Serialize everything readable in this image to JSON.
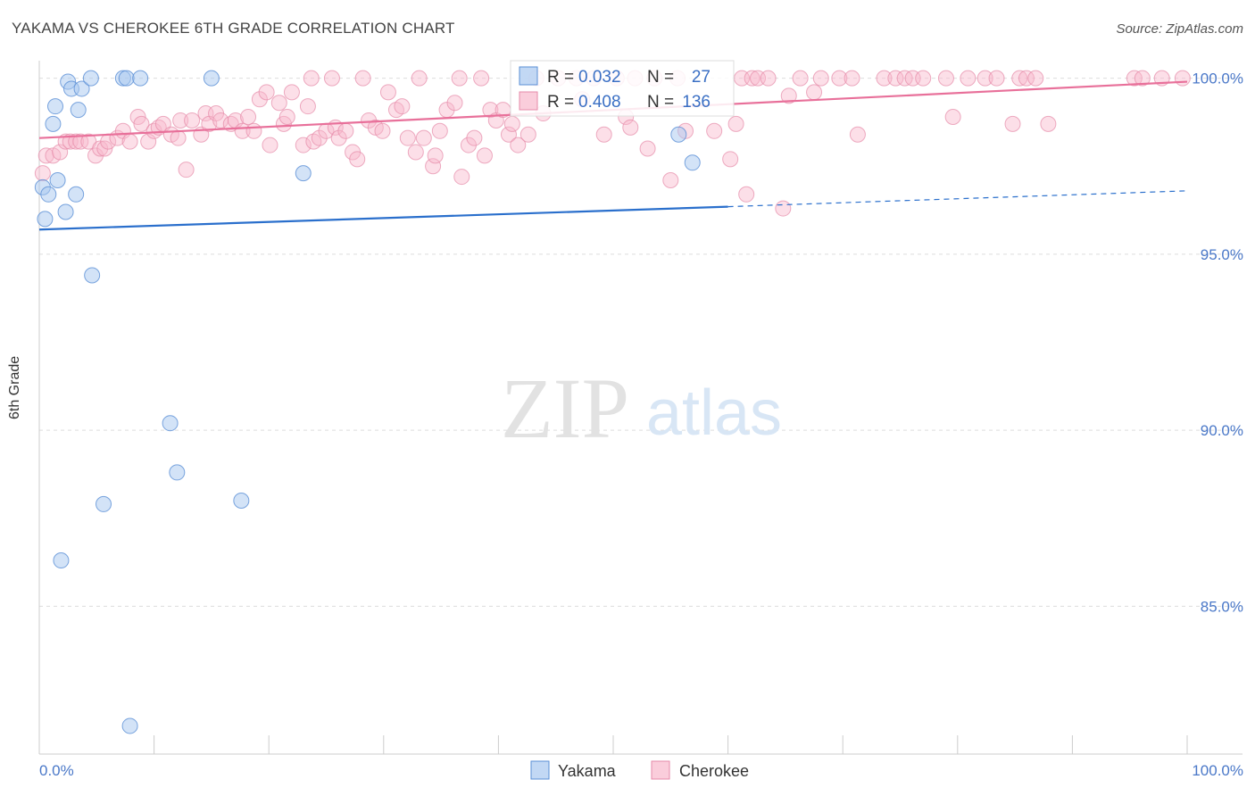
{
  "header": {
    "title": "YAKAMA VS CHEROKEE 6TH GRADE CORRELATION CHART",
    "source": "Source: ZipAtlas.com"
  },
  "watermark": {
    "zip": "ZIP",
    "atlas": "atlas"
  },
  "colors": {
    "yakama_fill": "#a8c8f0",
    "yakama_stroke": "#5a8fd6",
    "yakama_line": "#2a6fcc",
    "cherokee_fill": "#f8b8cc",
    "cherokee_stroke": "#e68aa8",
    "cherokee_line": "#e8709a",
    "tick_text": "#4a78c8",
    "grid": "#dddddd"
  },
  "chart_data": {
    "type": "scatter",
    "title": "YAKAMA VS CHEROKEE 6TH GRADE CORRELATION CHART",
    "xlabel": "",
    "ylabel": "6th Grade",
    "xlim": [
      0,
      100
    ],
    "ylim": [
      80.8,
      100.7
    ],
    "x_tick_labels": [
      {
        "value": 0,
        "label": "0.0%"
      },
      {
        "value": 100,
        "label": "100.0%"
      }
    ],
    "y_tick_labels": [
      {
        "value": 100,
        "label": "100.0%"
      },
      {
        "value": 95,
        "label": "95.0%"
      },
      {
        "value": 90,
        "label": "90.0%"
      },
      {
        "value": 85,
        "label": "85.0%"
      }
    ],
    "legend_position": "top-center",
    "series": [
      {
        "name": "Yakama",
        "R": "0.032",
        "N": "27",
        "trend": {
          "x0": 0,
          "y0": 95.7,
          "x1": 60,
          "y1": 96.35,
          "dash_to_x": 100,
          "dash_to_y": 96.8
        },
        "points": [
          [
            0.3,
            96.9
          ],
          [
            0.5,
            96.0
          ],
          [
            0.8,
            96.7
          ],
          [
            1.2,
            98.7
          ],
          [
            1.4,
            99.2
          ],
          [
            1.6,
            97.1
          ],
          [
            1.9,
            86.3
          ],
          [
            2.3,
            96.2
          ],
          [
            2.5,
            99.9
          ],
          [
            2.8,
            99.7
          ],
          [
            3.2,
            96.7
          ],
          [
            3.4,
            99.1
          ],
          [
            3.7,
            99.7
          ],
          [
            4.5,
            100.0
          ],
          [
            4.6,
            94.4
          ],
          [
            5.6,
            87.9
          ],
          [
            7.3,
            100.0
          ],
          [
            7.6,
            100.0
          ],
          [
            7.9,
            81.6
          ],
          [
            8.8,
            100.0
          ],
          [
            11.4,
            90.2
          ],
          [
            12.0,
            88.8
          ],
          [
            15.0,
            100.0
          ],
          [
            17.6,
            88.0
          ],
          [
            23.0,
            97.3
          ],
          [
            55.7,
            98.4
          ],
          [
            56.9,
            97.6
          ]
        ]
      },
      {
        "name": "Cherokee",
        "R": "0.408",
        "N": "136",
        "trend": {
          "x0": 0,
          "y0": 98.3,
          "x1": 100,
          "y1": 99.9
        },
        "points": [
          [
            0.3,
            97.3
          ],
          [
            0.6,
            97.8
          ],
          [
            1.2,
            97.8
          ],
          [
            1.8,
            97.9
          ],
          [
            2.3,
            98.2
          ],
          [
            2.7,
            98.2
          ],
          [
            3.2,
            98.2
          ],
          [
            3.6,
            98.2
          ],
          [
            4.3,
            98.2
          ],
          [
            4.9,
            97.8
          ],
          [
            5.3,
            98.0
          ],
          [
            5.7,
            98.0
          ],
          [
            6.0,
            98.2
          ],
          [
            6.8,
            98.3
          ],
          [
            7.3,
            98.5
          ],
          [
            7.9,
            98.2
          ],
          [
            8.6,
            98.9
          ],
          [
            8.9,
            98.7
          ],
          [
            9.5,
            98.2
          ],
          [
            10.0,
            98.5
          ],
          [
            10.4,
            98.6
          ],
          [
            10.8,
            98.7
          ],
          [
            11.5,
            98.4
          ],
          [
            12.1,
            98.3
          ],
          [
            12.3,
            98.8
          ],
          [
            12.8,
            97.4
          ],
          [
            13.3,
            98.8
          ],
          [
            14.1,
            98.4
          ],
          [
            14.5,
            99.0
          ],
          [
            14.8,
            98.7
          ],
          [
            15.4,
            99.0
          ],
          [
            15.8,
            98.8
          ],
          [
            16.7,
            98.7
          ],
          [
            17.1,
            98.8
          ],
          [
            17.7,
            98.5
          ],
          [
            18.2,
            98.9
          ],
          [
            18.7,
            98.5
          ],
          [
            19.2,
            99.4
          ],
          [
            19.8,
            99.6
          ],
          [
            20.1,
            98.1
          ],
          [
            20.9,
            99.3
          ],
          [
            21.3,
            98.7
          ],
          [
            21.6,
            98.9
          ],
          [
            22.0,
            99.6
          ],
          [
            23.0,
            98.1
          ],
          [
            23.4,
            99.2
          ],
          [
            23.7,
            100.0
          ],
          [
            23.9,
            98.2
          ],
          [
            24.4,
            98.3
          ],
          [
            25.0,
            98.5
          ],
          [
            25.5,
            100.0
          ],
          [
            25.8,
            98.6
          ],
          [
            26.1,
            98.3
          ],
          [
            26.7,
            98.5
          ],
          [
            27.3,
            97.9
          ],
          [
            27.7,
            97.7
          ],
          [
            28.2,
            100.0
          ],
          [
            28.7,
            98.8
          ],
          [
            29.3,
            98.6
          ],
          [
            29.9,
            98.5
          ],
          [
            30.4,
            99.6
          ],
          [
            31.1,
            99.1
          ],
          [
            31.6,
            99.2
          ],
          [
            32.1,
            98.3
          ],
          [
            32.8,
            97.9
          ],
          [
            33.1,
            100.0
          ],
          [
            33.5,
            98.3
          ],
          [
            34.3,
            97.5
          ],
          [
            34.5,
            97.8
          ],
          [
            34.9,
            98.5
          ],
          [
            35.5,
            99.1
          ],
          [
            36.2,
            99.3
          ],
          [
            36.6,
            100.0
          ],
          [
            36.8,
            97.2
          ],
          [
            37.4,
            98.1
          ],
          [
            37.9,
            98.3
          ],
          [
            38.5,
            100.0
          ],
          [
            38.8,
            97.8
          ],
          [
            39.3,
            99.1
          ],
          [
            39.8,
            98.8
          ],
          [
            40.4,
            99.1
          ],
          [
            40.9,
            98.4
          ],
          [
            41.2,
            98.7
          ],
          [
            41.7,
            98.1
          ],
          [
            42.6,
            98.4
          ],
          [
            43.3,
            100.0
          ],
          [
            43.9,
            99.0
          ],
          [
            45.2,
            100.0
          ],
          [
            46.8,
            100.0
          ],
          [
            47.3,
            99.4
          ],
          [
            48.3,
            100.0
          ],
          [
            49.2,
            98.4
          ],
          [
            50.3,
            100.0
          ],
          [
            51.1,
            98.9
          ],
          [
            51.5,
            98.6
          ],
          [
            51.9,
            100.0
          ],
          [
            53.0,
            98.0
          ],
          [
            53.6,
            100.0
          ],
          [
            55.0,
            97.1
          ],
          [
            55.6,
            100.0
          ],
          [
            56.3,
            98.5
          ],
          [
            58.8,
            98.5
          ],
          [
            60.2,
            97.7
          ],
          [
            60.7,
            98.7
          ],
          [
            61.2,
            100.0
          ],
          [
            61.6,
            96.7
          ],
          [
            62.1,
            100.0
          ],
          [
            62.6,
            100.0
          ],
          [
            63.5,
            100.0
          ],
          [
            64.8,
            96.3
          ],
          [
            65.3,
            99.5
          ],
          [
            66.3,
            100.0
          ],
          [
            67.5,
            99.6
          ],
          [
            68.1,
            100.0
          ],
          [
            69.7,
            100.0
          ],
          [
            70.8,
            100.0
          ],
          [
            71.3,
            98.4
          ],
          [
            73.6,
            100.0
          ],
          [
            74.6,
            100.0
          ],
          [
            75.4,
            100.0
          ],
          [
            76.1,
            100.0
          ],
          [
            77.0,
            100.0
          ],
          [
            79.0,
            100.0
          ],
          [
            79.6,
            98.9
          ],
          [
            80.9,
            100.0
          ],
          [
            82.4,
            100.0
          ],
          [
            83.4,
            100.0
          ],
          [
            84.8,
            98.7
          ],
          [
            85.4,
            100.0
          ],
          [
            86.0,
            100.0
          ],
          [
            86.8,
            100.0
          ],
          [
            87.9,
            98.7
          ],
          [
            95.4,
            100.0
          ],
          [
            96.1,
            100.0
          ],
          [
            97.8,
            100.0
          ],
          [
            99.6,
            100.0
          ]
        ]
      }
    ]
  },
  "legend_top": {
    "r_label": "R =",
    "n_label": "N ="
  },
  "legend_bottom": {
    "yakama": "Yakama",
    "cherokee": "Cherokee"
  }
}
